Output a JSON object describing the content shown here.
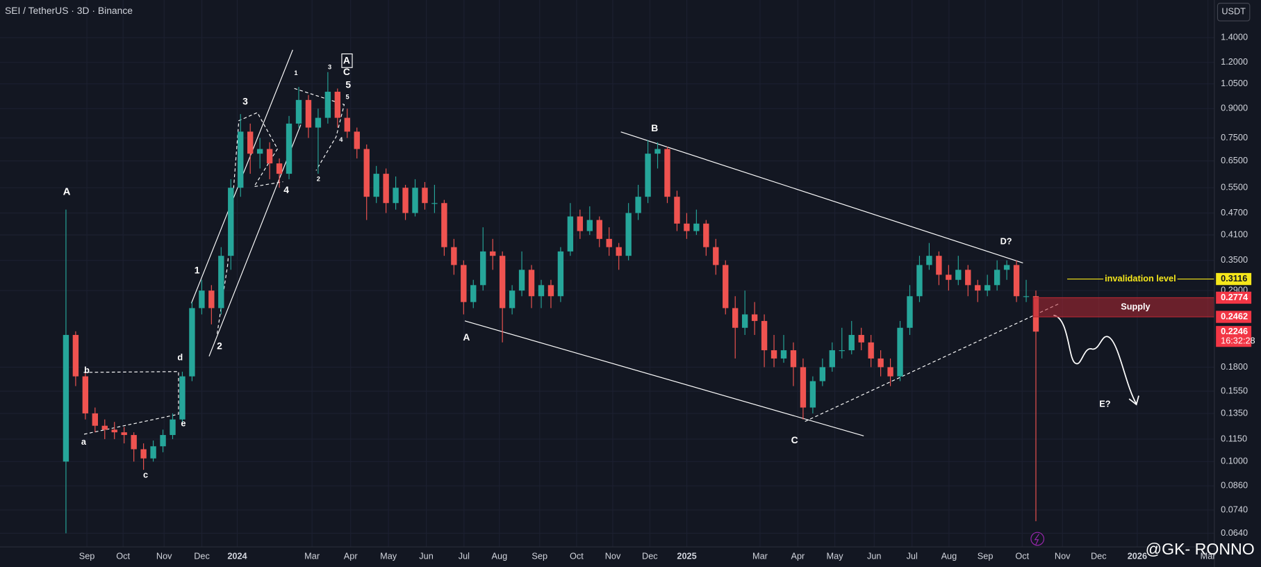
{
  "chart_data": {
    "type": "candlestick",
    "title": "SEI / TetherUS · 3D · Binance",
    "currency_button": "USDT",
    "log_scale": true,
    "up_color": "#26a69a",
    "down_color": "#ef5350",
    "xlim": [
      -6.8,
      118.4
    ],
    "ylim": [
      0.0588,
      1.77
    ],
    "xticks": [
      {
        "value": 2.16,
        "label": "Sep"
      },
      {
        "value": 5.89,
        "label": "Oct"
      },
      {
        "value": 10.12,
        "label": "Nov"
      },
      {
        "value": 14.01,
        "label": "Dec"
      },
      {
        "value": 17.66,
        "label": "2024"
      },
      {
        "value": 25.37,
        "label": "Mar"
      },
      {
        "value": 29.35,
        "label": "Apr"
      },
      {
        "value": 33.25,
        "label": "May"
      },
      {
        "value": 37.15,
        "label": "Jun"
      },
      {
        "value": 41.04,
        "label": "Jul"
      },
      {
        "value": 44.69,
        "label": "Aug"
      },
      {
        "value": 48.84,
        "label": "Sep"
      },
      {
        "value": 52.65,
        "label": "Oct"
      },
      {
        "value": 56.38,
        "label": "Nov"
      },
      {
        "value": 60.2,
        "label": "Dec"
      },
      {
        "value": 64.01,
        "label": "2025"
      },
      {
        "value": 71.56,
        "label": "Mar"
      },
      {
        "value": 75.46,
        "label": "Apr"
      },
      {
        "value": 79.27,
        "label": "May"
      },
      {
        "value": 83.33,
        "label": "Jun"
      },
      {
        "value": 87.23,
        "label": "Jul"
      },
      {
        "value": 91.04,
        "label": "Aug"
      },
      {
        "value": 94.78,
        "label": "Sep"
      },
      {
        "value": 98.59,
        "label": "Oct"
      },
      {
        "value": 102.74,
        "label": "Nov"
      },
      {
        "value": 106.47,
        "label": "Dec"
      },
      {
        "value": 110.45,
        "label": "2026"
      },
      {
        "value": 117.74,
        "label": "Mar"
      }
    ],
    "yticks": [
      {
        "value": 1.4,
        "label": "1.4000"
      },
      {
        "value": 1.2,
        "label": "1.2000"
      },
      {
        "value": 1.05,
        "label": "1.0500"
      },
      {
        "value": 0.9,
        "label": "0.9000"
      },
      {
        "value": 0.75,
        "label": "0.7500"
      },
      {
        "value": 0.65,
        "label": "0.6500"
      },
      {
        "value": 0.55,
        "label": "0.5500"
      },
      {
        "value": 0.47,
        "label": "0.4700"
      },
      {
        "value": 0.41,
        "label": "0.4100"
      },
      {
        "value": 0.35,
        "label": "0.3500"
      },
      {
        "value": 0.29,
        "label": "0.2900"
      },
      {
        "value": 0.18,
        "label": "0.1800"
      },
      {
        "value": 0.155,
        "label": "0.1550"
      },
      {
        "value": 0.135,
        "label": "0.1350"
      },
      {
        "value": 0.115,
        "label": "0.1150"
      },
      {
        "value": 0.1,
        "label": "0.1000"
      },
      {
        "value": 0.086,
        "label": "0.0860"
      },
      {
        "value": 0.074,
        "label": "0.0740"
      },
      {
        "value": 0.064,
        "label": "0.0640"
      }
    ],
    "candles": [
      [
        0.1,
        0.48,
        0.064,
        0.22
      ],
      [
        0.22,
        0.225,
        0.16,
        0.17
      ],
      [
        0.17,
        0.175,
        0.13,
        0.135
      ],
      [
        0.135,
        0.14,
        0.12,
        0.125
      ],
      [
        0.125,
        0.13,
        0.115,
        0.122
      ],
      [
        0.122,
        0.128,
        0.115,
        0.12
      ],
      [
        0.12,
        0.124,
        0.112,
        0.118
      ],
      [
        0.118,
        0.12,
        0.1,
        0.108
      ],
      [
        0.108,
        0.112,
        0.095,
        0.102
      ],
      [
        0.102,
        0.114,
        0.1,
        0.11
      ],
      [
        0.11,
        0.122,
        0.106,
        0.118
      ],
      [
        0.118,
        0.135,
        0.115,
        0.13
      ],
      [
        0.13,
        0.175,
        0.128,
        0.17
      ],
      [
        0.17,
        0.27,
        0.165,
        0.26
      ],
      [
        0.26,
        0.31,
        0.25,
        0.29
      ],
      [
        0.29,
        0.3,
        0.235,
        0.26
      ],
      [
        0.26,
        0.38,
        0.25,
        0.36
      ],
      [
        0.36,
        0.58,
        0.33,
        0.55
      ],
      [
        0.55,
        0.87,
        0.52,
        0.78
      ],
      [
        0.78,
        0.82,
        0.6,
        0.68
      ],
      [
        0.68,
        0.75,
        0.62,
        0.7
      ],
      [
        0.7,
        0.73,
        0.58,
        0.64
      ],
      [
        0.64,
        0.66,
        0.55,
        0.6
      ],
      [
        0.6,
        0.86,
        0.58,
        0.82
      ],
      [
        0.82,
        1.03,
        0.8,
        0.95
      ],
      [
        0.95,
        0.98,
        0.75,
        0.8
      ],
      [
        0.8,
        0.9,
        0.6,
        0.85
      ],
      [
        0.85,
        1.13,
        0.82,
        1.0
      ],
      [
        1.0,
        1.02,
        0.8,
        0.85
      ],
      [
        0.85,
        0.9,
        0.75,
        0.78
      ],
      [
        0.78,
        0.8,
        0.66,
        0.7
      ],
      [
        0.7,
        0.72,
        0.45,
        0.52
      ],
      [
        0.52,
        0.63,
        0.5,
        0.6
      ],
      [
        0.6,
        0.62,
        0.47,
        0.5
      ],
      [
        0.5,
        0.59,
        0.48,
        0.55
      ],
      [
        0.55,
        0.56,
        0.45,
        0.47
      ],
      [
        0.47,
        0.58,
        0.46,
        0.55
      ],
      [
        0.55,
        0.57,
        0.48,
        0.5
      ],
      [
        0.5,
        0.56,
        0.47,
        0.5
      ],
      [
        0.5,
        0.51,
        0.36,
        0.38
      ],
      [
        0.38,
        0.4,
        0.32,
        0.34
      ],
      [
        0.34,
        0.35,
        0.25,
        0.27
      ],
      [
        0.27,
        0.31,
        0.26,
        0.3
      ],
      [
        0.3,
        0.43,
        0.29,
        0.37
      ],
      [
        0.37,
        0.4,
        0.33,
        0.36
      ],
      [
        0.36,
        0.37,
        0.21,
        0.26
      ],
      [
        0.26,
        0.3,
        0.25,
        0.29
      ],
      [
        0.29,
        0.37,
        0.28,
        0.33
      ],
      [
        0.33,
        0.34,
        0.26,
        0.28
      ],
      [
        0.28,
        0.31,
        0.26,
        0.3
      ],
      [
        0.3,
        0.31,
        0.26,
        0.28
      ],
      [
        0.28,
        0.38,
        0.27,
        0.37
      ],
      [
        0.37,
        0.5,
        0.36,
        0.46
      ],
      [
        0.46,
        0.48,
        0.4,
        0.42
      ],
      [
        0.42,
        0.49,
        0.41,
        0.45
      ],
      [
        0.45,
        0.46,
        0.38,
        0.4
      ],
      [
        0.4,
        0.43,
        0.36,
        0.38
      ],
      [
        0.38,
        0.39,
        0.33,
        0.36
      ],
      [
        0.36,
        0.5,
        0.35,
        0.47
      ],
      [
        0.47,
        0.56,
        0.45,
        0.52
      ],
      [
        0.52,
        0.74,
        0.5,
        0.68
      ],
      [
        0.68,
        0.73,
        0.62,
        0.7
      ],
      [
        0.7,
        0.71,
        0.5,
        0.52
      ],
      [
        0.52,
        0.54,
        0.42,
        0.44
      ],
      [
        0.44,
        0.47,
        0.4,
        0.42
      ],
      [
        0.42,
        0.48,
        0.41,
        0.44
      ],
      [
        0.44,
        0.45,
        0.36,
        0.38
      ],
      [
        0.38,
        0.4,
        0.32,
        0.34
      ],
      [
        0.34,
        0.35,
        0.25,
        0.26
      ],
      [
        0.26,
        0.28,
        0.19,
        0.23
      ],
      [
        0.23,
        0.29,
        0.22,
        0.25
      ],
      [
        0.25,
        0.27,
        0.22,
        0.24
      ],
      [
        0.24,
        0.25,
        0.18,
        0.2
      ],
      [
        0.2,
        0.22,
        0.18,
        0.19
      ],
      [
        0.19,
        0.22,
        0.185,
        0.2
      ],
      [
        0.2,
        0.21,
        0.16,
        0.18
      ],
      [
        0.18,
        0.19,
        0.13,
        0.14
      ],
      [
        0.14,
        0.17,
        0.135,
        0.165
      ],
      [
        0.165,
        0.19,
        0.16,
        0.18
      ],
      [
        0.18,
        0.21,
        0.175,
        0.2
      ],
      [
        0.2,
        0.23,
        0.19,
        0.2
      ],
      [
        0.2,
        0.24,
        0.195,
        0.22
      ],
      [
        0.22,
        0.23,
        0.2,
        0.21
      ],
      [
        0.21,
        0.22,
        0.18,
        0.19
      ],
      [
        0.19,
        0.2,
        0.17,
        0.18
      ],
      [
        0.18,
        0.19,
        0.16,
        0.17
      ],
      [
        0.17,
        0.24,
        0.165,
        0.23
      ],
      [
        0.23,
        0.3,
        0.22,
        0.28
      ],
      [
        0.28,
        0.36,
        0.27,
        0.34
      ],
      [
        0.34,
        0.39,
        0.33,
        0.36
      ],
      [
        0.36,
        0.37,
        0.3,
        0.32
      ],
      [
        0.32,
        0.34,
        0.29,
        0.31
      ],
      [
        0.31,
        0.36,
        0.3,
        0.33
      ],
      [
        0.33,
        0.34,
        0.28,
        0.3
      ],
      [
        0.3,
        0.31,
        0.27,
        0.29
      ],
      [
        0.29,
        0.32,
        0.28,
        0.3
      ],
      [
        0.3,
        0.35,
        0.29,
        0.33
      ],
      [
        0.33,
        0.35,
        0.31,
        0.34
      ],
      [
        0.34,
        0.35,
        0.27,
        0.28
      ],
      [
        0.28,
        0.31,
        0.27,
        0.28
      ],
      [
        0.28,
        0.29,
        0.069,
        0.2246
      ]
    ],
    "price_tags": [
      {
        "value": 0.3116,
        "color": "#f5e71b"
      },
      {
        "value": 0.2774,
        "color": "#f23645"
      },
      {
        "value": 0.2462,
        "color": "#f23645"
      },
      {
        "value": 0.2246,
        "color": "#f23645",
        "countdown": "16:32:28"
      }
    ],
    "invalidation_label": "invalidation level",
    "supply_label": "Supply",
    "annotations": [
      "A",
      "b",
      "a",
      "c",
      "d",
      "e",
      "1",
      "2",
      "3",
      "4",
      "1",
      "3",
      "A",
      "C",
      "5",
      "5",
      "4",
      "2",
      "B",
      "A",
      "C",
      "D?",
      "E?"
    ],
    "watermark": "@GK-  RONNO"
  }
}
